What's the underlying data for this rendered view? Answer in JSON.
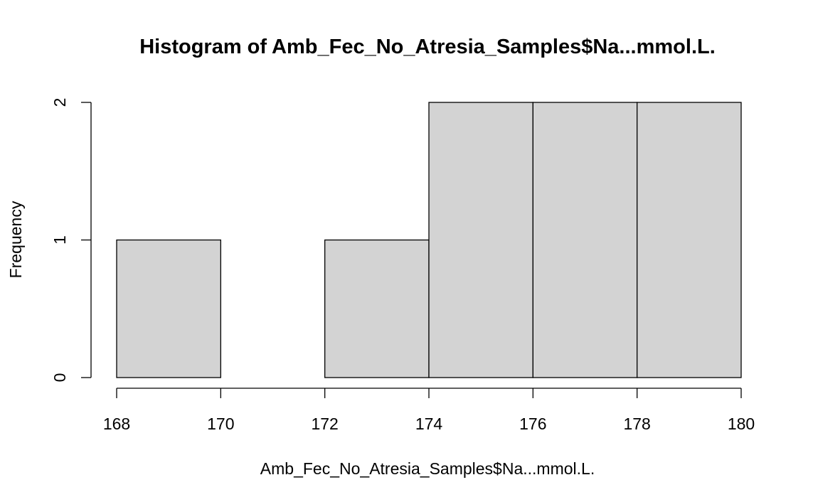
{
  "chart_data": {
    "type": "bar",
    "title": "Histogram of Amb_Fec_No_Atresia_Samples$Na...mmol.L.",
    "xlabel": "Amb_Fec_No_Atresia_Samples$Na...mmol.L.",
    "ylabel": "Frequency",
    "bins": [
      {
        "x0": 168,
        "x1": 170,
        "count": 1
      },
      {
        "x0": 170,
        "x1": 172,
        "count": 0
      },
      {
        "x0": 172,
        "x1": 174,
        "count": 1
      },
      {
        "x0": 174,
        "x1": 176,
        "count": 2
      },
      {
        "x0": 176,
        "x1": 178,
        "count": 2
      },
      {
        "x0": 178,
        "x1": 180,
        "count": 2
      }
    ],
    "xlim": [
      168,
      180
    ],
    "ylim": [
      0,
      2
    ],
    "x_ticks": [
      168,
      170,
      172,
      174,
      176,
      178,
      180
    ],
    "y_ticks": [
      0,
      1,
      2
    ],
    "bar_fill": "#d3d3d3",
    "bar_stroke": "#000000",
    "grid": false,
    "legend": "none"
  }
}
